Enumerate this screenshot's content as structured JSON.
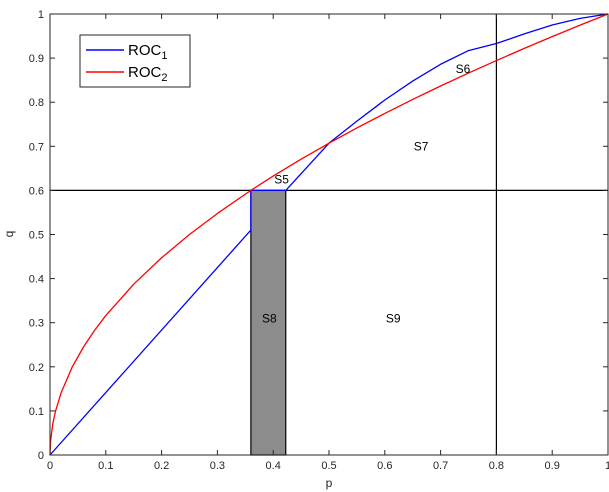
{
  "chart_data": {
    "type": "line",
    "xlabel": "p",
    "ylabel": "q",
    "xlim": [
      0,
      1
    ],
    "ylim": [
      0,
      1
    ],
    "xticks": [
      "0",
      "0.1",
      "0.2",
      "0.3",
      "0.4",
      "0.5",
      "0.6",
      "0.7",
      "0.8",
      "0.9",
      "1"
    ],
    "yticks": [
      "0",
      "0.1",
      "0.2",
      "0.3",
      "0.4",
      "0.5",
      "0.6",
      "0.7",
      "0.8",
      "0.9",
      "1"
    ],
    "grid": false,
    "legend": {
      "placement": "top-left",
      "entries": [
        {
          "base": "ROC",
          "sub": "1",
          "color": "#0000ff"
        },
        {
          "base": "ROC",
          "sub": "2",
          "color": "#ff0000"
        }
      ]
    },
    "series": [
      {
        "name": "ROC1",
        "color": "#0000ff",
        "x": [
          0,
          0.36,
          0.36,
          0.4225,
          0.5,
          0.55,
          0.6,
          0.65,
          0.7,
          0.75,
          0.8,
          0.85,
          0.9,
          0.95,
          1.0
        ],
        "y": [
          0,
          0.51,
          0.6,
          0.6,
          0.7071,
          0.757,
          0.805,
          0.848,
          0.886,
          0.917,
          0.933,
          0.955,
          0.975,
          0.99,
          1.0
        ]
      },
      {
        "name": "ROC2",
        "color": "#ff0000",
        "x": [
          0,
          0.001,
          0.005,
          0.01,
          0.02,
          0.04,
          0.06,
          0.08,
          0.1,
          0.15,
          0.2,
          0.25,
          0.3,
          0.36,
          0.4,
          0.45,
          0.5,
          0.55,
          0.6,
          0.65,
          0.7,
          0.75,
          0.8,
          0.85,
          0.9,
          0.95,
          1.0
        ],
        "y": [
          0,
          0.0316,
          0.0707,
          0.1,
          0.1414,
          0.2,
          0.2449,
          0.2828,
          0.3162,
          0.3873,
          0.4472,
          0.5,
          0.5477,
          0.6,
          0.6325,
          0.6708,
          0.7071,
          0.7416,
          0.7746,
          0.8062,
          0.8367,
          0.866,
          0.8944,
          0.922,
          0.9487,
          0.9747,
          1.0
        ]
      }
    ],
    "reference_lines": [
      {
        "orientation": "horizontal",
        "value": 0.6,
        "color": "#000000"
      },
      {
        "orientation": "vertical",
        "value": 0.8,
        "color": "#000000"
      }
    ],
    "shaded_region": {
      "x0": 0.36,
      "x1": 0.4225,
      "y0": 0,
      "y1": 0.6,
      "fill": "#8c8c8c",
      "edge": "#000000"
    },
    "annotations": [
      {
        "text": "S5",
        "x": 0.415,
        "y": 0.625
      },
      {
        "text": "S6",
        "x": 0.74,
        "y": 0.875
      },
      {
        "text": "S7",
        "x": 0.665,
        "y": 0.7
      },
      {
        "text": "S8",
        "x": 0.393,
        "y": 0.31
      },
      {
        "text": "S9",
        "x": 0.615,
        "y": 0.31
      }
    ]
  }
}
